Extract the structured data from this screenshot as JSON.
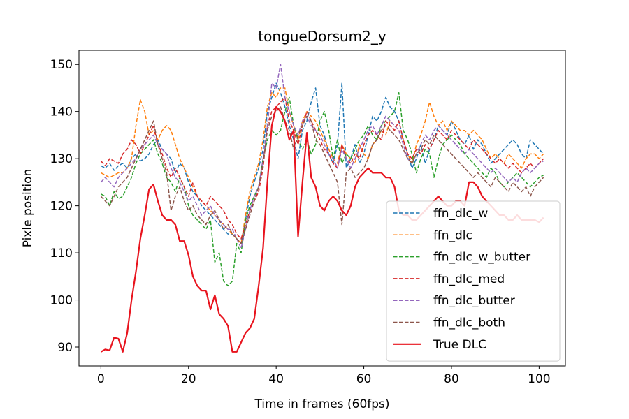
{
  "chart_data": {
    "type": "line",
    "title": "tongueDorsum2_y",
    "xlabel": "Time in frames (60fps)",
    "ylabel": "Pixle position",
    "xlim": [
      -5,
      106
    ],
    "ylim": [
      86,
      153
    ],
    "xticks": [
      0,
      20,
      40,
      60,
      80,
      100
    ],
    "yticks": [
      90,
      100,
      110,
      120,
      130,
      140,
      150
    ],
    "grid": false,
    "legend_position": "lower right",
    "series": [
      {
        "name": "ffn_dlc_w",
        "color": "#1f77b4",
        "style": "dashed",
        "values": [
          128.5,
          128,
          129,
          127.5,
          128.5,
          129,
          128,
          130,
          131,
          129.5,
          130,
          131,
          133,
          134,
          132,
          131,
          130,
          127,
          129,
          128,
          125,
          123,
          122,
          120,
          119,
          118,
          117,
          116,
          115,
          114,
          114,
          113,
          112,
          117,
          122,
          125,
          128,
          132,
          140,
          143,
          146,
          144,
          141,
          137,
          134,
          130,
          136,
          138,
          142,
          145,
          137,
          135,
          131,
          129,
          133,
          146,
          128,
          130,
          133,
          129,
          131,
          135,
          139,
          138,
          140,
          143,
          141,
          140,
          138,
          134,
          131,
          128,
          130,
          133,
          129,
          132,
          134,
          137,
          136,
          135,
          138,
          136,
          134,
          133,
          135,
          132,
          134,
          133,
          131,
          129,
          130,
          131,
          132,
          133,
          134,
          133,
          131,
          130,
          134,
          133,
          132,
          131
        ]
      },
      {
        "name": "ffn_dlc",
        "color": "#ff7f0e",
        "style": "dashed",
        "values": [
          127,
          126.5,
          126,
          126.5,
          127,
          127,
          128,
          130,
          137,
          142.5,
          140,
          135,
          136,
          134,
          136,
          137,
          136,
          133,
          130,
          128,
          126,
          124,
          122,
          121,
          120,
          119,
          118,
          117,
          116,
          115,
          114,
          113,
          112,
          118,
          123,
          126,
          129,
          134,
          141,
          144,
          143,
          145,
          145,
          140,
          137,
          134,
          138,
          140,
          139,
          138,
          136,
          134,
          132,
          130,
          129,
          133,
          131,
          130,
          129,
          133,
          131,
          130,
          133,
          134,
          136,
          135,
          138,
          137,
          136,
          134,
          131,
          129,
          133,
          135,
          138,
          142,
          139,
          137,
          138,
          136,
          138,
          137,
          136,
          136,
          135,
          136,
          135,
          134,
          132,
          130,
          131,
          130,
          129,
          131,
          130,
          129,
          128,
          130,
          131,
          131,
          130,
          131
        ]
      },
      {
        "name": "ffn_dlc_w_butter",
        "color": "#2ca02c",
        "style": "dashed",
        "values": [
          122.5,
          122,
          120,
          123,
          121.5,
          122,
          124,
          126,
          129,
          131,
          132,
          133,
          134,
          131,
          129,
          126,
          125,
          123,
          126,
          124,
          120,
          118,
          117,
          116,
          115,
          117,
          108,
          110,
          104,
          103,
          104,
          112,
          110,
          117,
          120,
          122,
          124,
          130,
          134,
          136,
          135,
          136,
          140,
          143,
          137,
          134,
          132,
          134,
          131,
          133,
          138,
          140,
          136,
          130,
          134,
          129,
          131,
          130,
          132,
          134,
          135,
          137,
          135,
          134,
          137,
          138,
          139,
          140,
          144,
          136,
          134,
          131,
          127,
          130,
          132,
          131,
          126,
          130,
          133,
          134,
          135,
          134,
          133,
          131,
          130,
          129,
          128,
          127,
          126,
          128,
          127,
          125,
          124,
          125,
          126,
          127,
          126,
          125,
          124,
          125,
          126,
          126.5
        ]
      },
      {
        "name": "ffn_dlc_med",
        "color": "#d62728",
        "style": "dashed",
        "values": [
          129.5,
          128.5,
          130,
          129.5,
          129,
          131,
          132,
          134,
          133,
          131,
          133,
          135,
          137,
          133,
          131,
          128,
          126,
          128,
          126,
          124,
          122,
          125,
          122,
          121,
          120,
          122,
          121,
          120,
          119,
          117,
          116,
          114,
          113,
          116,
          119,
          121,
          123,
          128,
          137,
          140,
          141,
          142,
          143,
          138,
          136,
          133,
          137,
          140,
          138,
          136,
          134,
          132,
          131,
          129,
          128,
          133,
          130,
          129,
          131,
          130,
          133,
          135,
          136,
          135,
          134,
          138,
          137,
          136,
          138,
          134,
          131,
          130,
          132,
          131,
          133,
          132,
          134,
          136,
          135,
          134,
          136,
          135,
          134,
          133,
          132,
          134,
          133,
          132,
          131,
          130,
          129,
          130,
          129,
          128,
          129,
          128,
          127,
          128,
          129,
          128,
          129,
          130
        ]
      },
      {
        "name": "ffn_dlc_butter",
        "color": "#9467bd",
        "style": "dashed",
        "values": [
          125,
          126,
          125,
          124,
          126,
          127,
          128,
          129,
          130,
          132,
          133,
          134,
          135,
          133,
          132,
          131,
          128,
          126,
          125,
          123,
          121,
          122,
          120,
          118,
          119,
          120,
          118,
          117,
          116,
          115,
          115,
          113,
          111,
          115,
          119,
          122,
          124,
          130,
          137,
          146,
          145,
          150,
          143,
          140,
          137,
          135,
          138,
          139,
          137,
          136,
          135,
          133,
          131,
          130,
          128,
          132,
          130,
          128,
          130,
          132,
          134,
          136,
          137,
          135,
          137,
          139,
          138,
          137,
          136,
          133,
          130,
          129,
          131,
          133,
          135,
          134,
          136,
          137,
          136,
          135,
          134,
          133,
          132,
          131,
          132,
          131,
          130,
          129,
          128,
          127,
          128,
          127,
          126,
          125,
          126,
          125,
          127,
          128,
          127,
          128,
          129,
          129.5
        ]
      },
      {
        "name": "ffn_dlc_both",
        "color": "#8c564b",
        "style": "dashed",
        "values": [
          122,
          121,
          120,
          122,
          124,
          125,
          126,
          128,
          130,
          132,
          134,
          136,
          138,
          133,
          130,
          127,
          119,
          122,
          124,
          121,
          119,
          120,
          118,
          117,
          116,
          118,
          119,
          117,
          115,
          116,
          114,
          113,
          112,
          115,
          118,
          121,
          124,
          129,
          136,
          139,
          140,
          141,
          138,
          136,
          132,
          135,
          137,
          139,
          138,
          134,
          133,
          131,
          129,
          127,
          125,
          116,
          127,
          128,
          126,
          127,
          128,
          130,
          133,
          134,
          136,
          137,
          136,
          135,
          134,
          132,
          130,
          129,
          131,
          132,
          134,
          133,
          135,
          134,
          133,
          132,
          131,
          130,
          129,
          128,
          127,
          126,
          127,
          126,
          125,
          124,
          126,
          125,
          124,
          123,
          125,
          124,
          123,
          124,
          122,
          124,
          125,
          126
        ]
      },
      {
        "name": "True DLC",
        "color": "#e8141e",
        "style": "solid",
        "values": [
          89,
          89.5,
          89.3,
          92,
          91.8,
          89,
          93,
          100,
          106,
          113,
          118,
          123.5,
          124.5,
          121,
          118,
          117,
          117,
          116,
          112.5,
          112.5,
          109.5,
          105,
          103,
          102,
          102,
          98,
          101,
          97,
          96,
          94.5,
          89,
          89,
          91,
          93,
          94,
          96,
          103,
          111,
          125,
          137,
          141,
          140,
          138,
          134,
          136,
          113.5,
          125,
          135.5,
          126,
          124,
          120,
          119,
          121,
          122,
          121,
          119,
          118,
          120,
          124,
          126,
          127,
          128,
          127,
          127,
          127,
          126,
          126,
          124,
          119,
          118,
          118,
          117,
          117,
          118,
          119,
          120,
          121,
          122,
          121,
          120,
          120,
          121,
          121,
          120,
          125,
          125,
          124,
          122,
          121,
          120,
          119,
          118,
          118,
          117,
          117,
          118,
          117,
          117,
          117,
          117,
          116.5,
          117.5
        ]
      }
    ]
  }
}
